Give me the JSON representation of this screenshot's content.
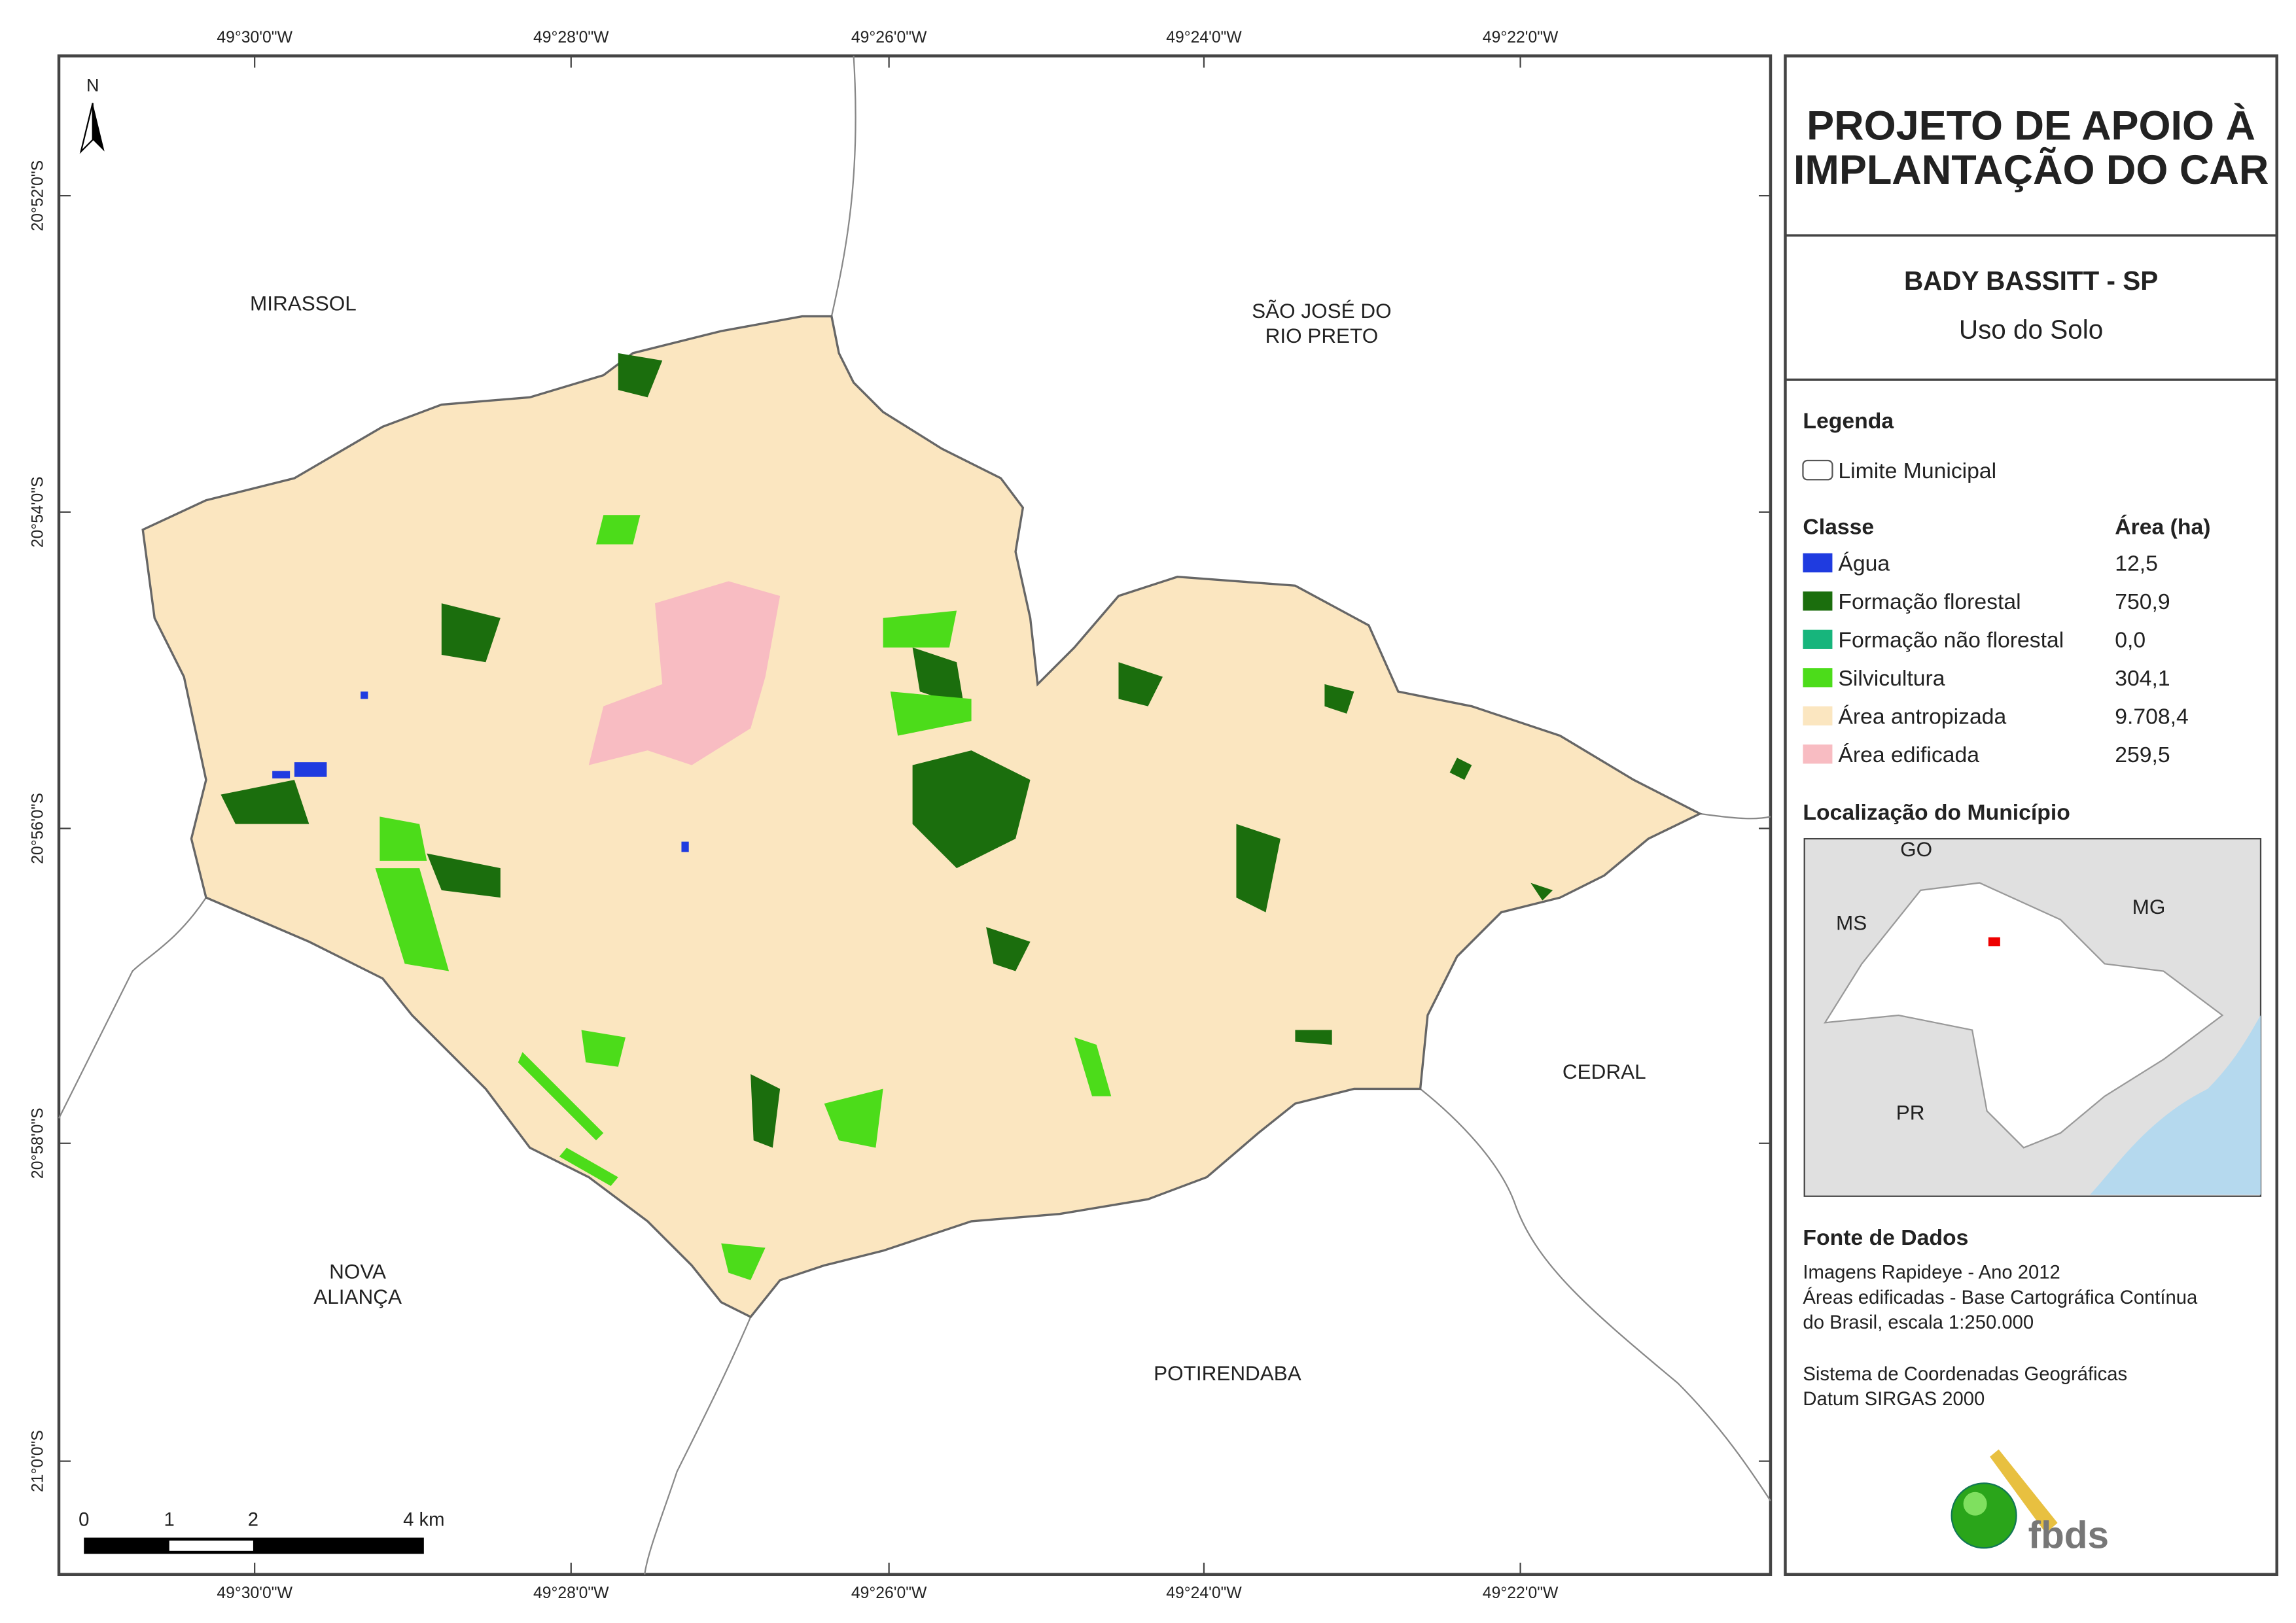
{
  "map": {
    "north": "N",
    "lon_labels": [
      "49°30'0\"W",
      "49°28'0\"W",
      "49°26'0\"W",
      "49°24'0\"W",
      "49°22'0\"W"
    ],
    "lat_labels": [
      "20°52'0\"S",
      "20°54'0\"S",
      "20°56'0\"S",
      "20°58'0\"S",
      "21°0'0\"S"
    ],
    "places": [
      {
        "lines": [
          "MIRASSOL"
        ]
      },
      {
        "lines": [
          "SÃO JOSÉ DO",
          "RIO PRETO"
        ]
      },
      {
        "lines": [
          "CEDRAL"
        ]
      },
      {
        "lines": [
          "NOVA",
          "ALIANÇA"
        ]
      },
      {
        "lines": [
          "POTIRENDABA"
        ]
      }
    ],
    "scale": [
      "0",
      "1",
      "2",
      "4 km"
    ]
  },
  "panel": {
    "title_lines": [
      "PROJETO DE APOIO À",
      "IMPLANTAÇÃO DO CAR"
    ],
    "municipality": "BADY BASSITT - SP",
    "theme": "Uso do Solo",
    "legend": {
      "heading": "Legenda",
      "boundary": "Limite Municipal",
      "class_header": "Classe",
      "area_header": "Área (ha)",
      "items": [
        {
          "label": "Água",
          "area": "12,5",
          "color": "#1f3be0"
        },
        {
          "label": "Formação florestal",
          "area": "750,9",
          "color": "#1b6e0d"
        },
        {
          "label": "Formação não florestal",
          "area": "0,0",
          "color": "#17b57c"
        },
        {
          "label": "Silvicultura",
          "area": "304,1",
          "color": "#4cdc1a"
        },
        {
          "label": "Área antropizada",
          "area": "9.708,4",
          "color": "#fbe6c0"
        },
        {
          "label": "Área edificada",
          "area": "259,5",
          "color": "#f8bcc2"
        }
      ]
    },
    "location": {
      "heading": "Localização do Município",
      "labels": [
        "GO",
        "MS",
        "MG",
        "PR"
      ]
    },
    "sources": {
      "heading": "Fonte de Dados",
      "lines": [
        "Imagens Rapideye - Ano 2012",
        "Áreas edificadas - Base Cartográfica Contínua",
        "do Brasil, escala 1:250.000",
        "Sistema de Coordenadas Geográficas",
        "Datum SIRGAS 2000"
      ]
    },
    "logo": "fbds"
  }
}
